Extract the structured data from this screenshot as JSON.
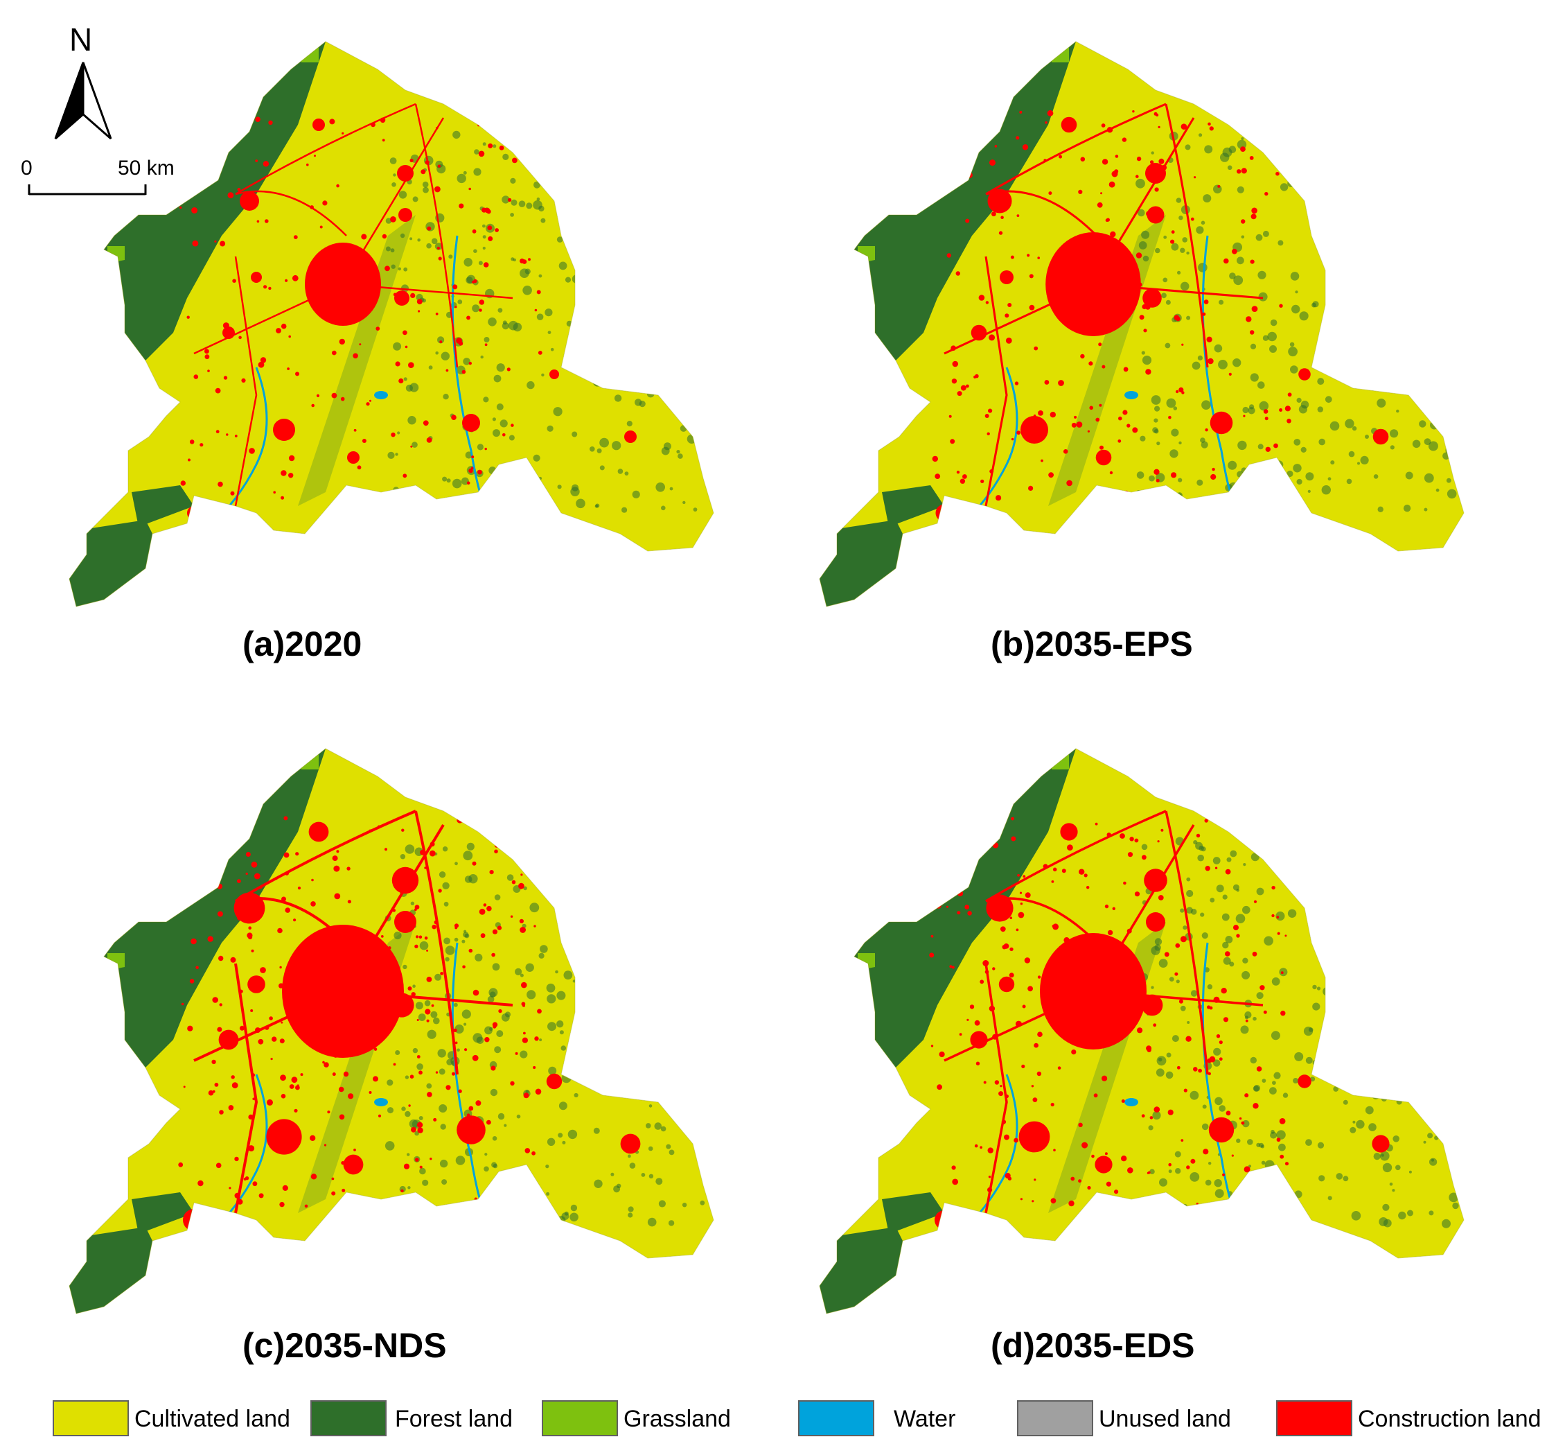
{
  "north_arrow": {
    "letter": "N"
  },
  "scale_bar": {
    "start": "0",
    "end": "50 km"
  },
  "panels": [
    {
      "label": "(a)2020"
    },
    {
      "label": "(b)2035-EPS"
    },
    {
      "label": "(c)2035-NDS"
    },
    {
      "label": "(d)2035-EDS"
    }
  ],
  "legend": [
    {
      "label": "Cultivated land",
      "color": "#dfe000"
    },
    {
      "label": "Forest land",
      "color": "#2e6f2a"
    },
    {
      "label": "Grassland",
      "color": "#7ec10f"
    },
    {
      "label": "Water",
      "color": "#00a3dc"
    },
    {
      "label": "Unused land",
      "color": "#a0a0a0"
    },
    {
      "label": "Construction land",
      "color": "#ff0000"
    }
  ]
}
